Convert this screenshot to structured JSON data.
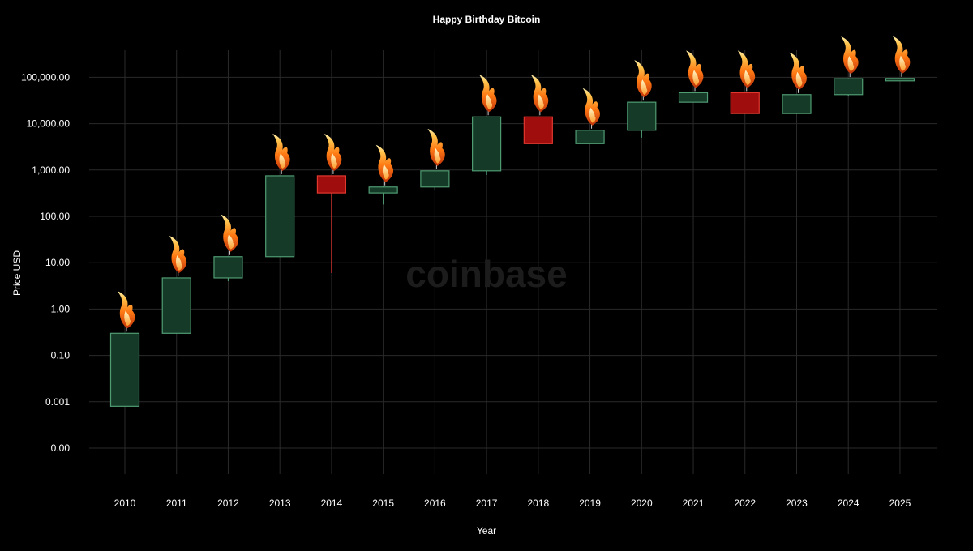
{
  "chart_data": {
    "type": "candlestick",
    "title": "Happy Birthday Bitcoin",
    "xlabel": "Year",
    "ylabel": "Price USD",
    "watermark": "coinbase",
    "y_scale": "log",
    "y_tick_labels": [
      "0.00",
      "0.001",
      "0.10",
      "1.00",
      "10.00",
      "100.00",
      "1,000.00",
      "10,000.00",
      "100,000.00"
    ],
    "categories": [
      "2010",
      "2011",
      "2012",
      "2013",
      "2014",
      "2015",
      "2016",
      "2017",
      "2018",
      "2019",
      "2020",
      "2021",
      "2022",
      "2023",
      "2024",
      "2025"
    ],
    "candles": [
      {
        "year": "2010",
        "open": 0.0008,
        "close": 0.3,
        "high": 0.3,
        "low": 0.0008,
        "direction": "up"
      },
      {
        "year": "2011",
        "open": 0.3,
        "close": 4.7,
        "high": 4.7,
        "low": 0.3,
        "direction": "up"
      },
      {
        "year": "2012",
        "open": 4.7,
        "close": 13.5,
        "high": 13.5,
        "low": 4.0,
        "direction": "up"
      },
      {
        "year": "2013",
        "open": 13.5,
        "close": 750,
        "high": 750,
        "low": 13.5,
        "direction": "up"
      },
      {
        "year": "2014",
        "open": 750,
        "close": 320,
        "high": 750,
        "low": 6,
        "direction": "down"
      },
      {
        "year": "2015",
        "open": 320,
        "close": 430,
        "high": 460,
        "low": 180,
        "direction": "up"
      },
      {
        "year": "2016",
        "open": 430,
        "close": 960,
        "high": 960,
        "low": 370,
        "direction": "up"
      },
      {
        "year": "2017",
        "open": 960,
        "close": 14000,
        "high": 14000,
        "low": 780,
        "direction": "up"
      },
      {
        "year": "2018",
        "open": 14000,
        "close": 3700,
        "high": 14000,
        "low": 3700,
        "direction": "down"
      },
      {
        "year": "2019",
        "open": 3700,
        "close": 7200,
        "high": 7200,
        "low": 3700,
        "direction": "up"
      },
      {
        "year": "2020",
        "open": 7200,
        "close": 29000,
        "high": 29000,
        "low": 5000,
        "direction": "up"
      },
      {
        "year": "2021",
        "open": 29000,
        "close": 46500,
        "high": 46500,
        "low": 29000,
        "direction": "up"
      },
      {
        "year": "2022",
        "open": 46500,
        "close": 16500,
        "high": 46500,
        "low": 16500,
        "direction": "down"
      },
      {
        "year": "2023",
        "open": 16500,
        "close": 42300,
        "high": 42300,
        "low": 16500,
        "direction": "up"
      },
      {
        "year": "2024",
        "open": 42300,
        "close": 93500,
        "high": 93500,
        "low": 38500,
        "direction": "up"
      },
      {
        "year": "2025",
        "open": 93500,
        "close": 94500,
        "high": 94500,
        "low": 93500,
        "direction": "up"
      }
    ],
    "grid": true,
    "legend": "none",
    "colors": {
      "background": "#000000",
      "grid": "#2a2a2a",
      "up_fill": "#163a28",
      "up_stroke": "#4f9b72",
      "down_fill": "#a00d0d",
      "down_stroke": "#e0372f",
      "text": "#ffffff",
      "watermark": "#1c1c1c"
    },
    "decoration": "candle-flame-icon on top of each candle"
  }
}
